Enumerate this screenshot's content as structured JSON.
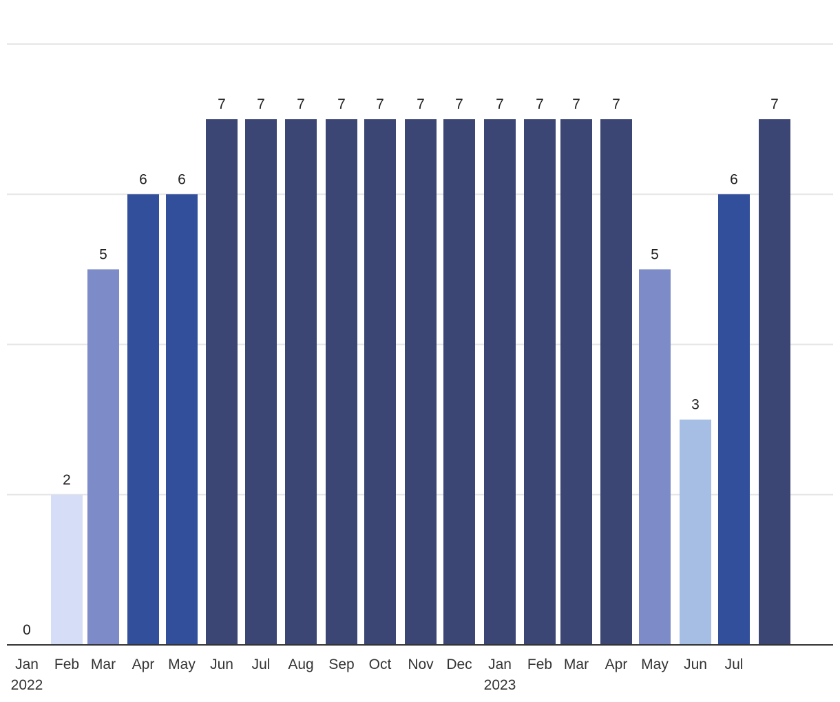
{
  "chart_data": {
    "type": "bar",
    "title": "",
    "xlabel": "",
    "ylabel": "",
    "ylim": [
      0,
      8
    ],
    "grid": true,
    "categories": [
      "Jan",
      "Feb",
      "Mar",
      "Apr",
      "May",
      "Jun",
      "Jul",
      "Aug",
      "Sep",
      "Oct",
      "Nov",
      "Dec",
      "Jan",
      "Feb",
      "Mar",
      "Apr",
      "May",
      "Jun",
      "Jul",
      ""
    ],
    "year_labels": [
      {
        "index": 0,
        "label": "2022"
      },
      {
        "index": 12,
        "label": "2023"
      }
    ],
    "values": [
      0,
      2,
      5,
      6,
      6,
      7,
      7,
      7,
      7,
      7,
      7,
      7,
      7,
      7,
      7,
      7,
      5,
      3,
      6,
      7
    ],
    "color_scale": {
      "2": "#d5ddf7",
      "3": "#a6bde4",
      "5": "#7d8cc8",
      "6": "#324f9c",
      "7": "#3b4674"
    },
    "gridline_color": "#e6e6e6",
    "axis_color": "#333333"
  }
}
